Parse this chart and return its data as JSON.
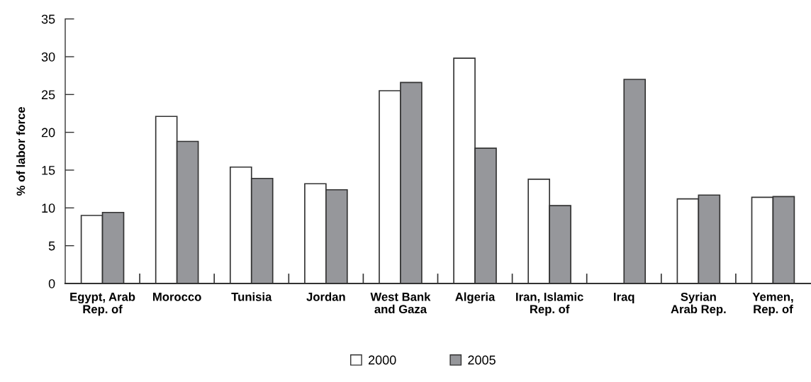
{
  "chart_data": {
    "type": "bar",
    "ylabel": "% of labor force",
    "categories": [
      "Egypt, Arab\nRep. of",
      "Morocco",
      "Tunisia",
      "Jordan",
      "West Bank\nand Gaza",
      "Algeria",
      "Iran, Islamic\nRep. of",
      "Iraq",
      "Syrian\nArab Rep.",
      "Yemen,\nRep. of"
    ],
    "series": [
      {
        "name": "2000",
        "color": "#ffffff",
        "values": [
          9.0,
          22.1,
          15.4,
          13.2,
          25.5,
          29.8,
          13.8,
          null,
          11.2,
          11.4
        ]
      },
      {
        "name": "2005",
        "color": "#96979b",
        "values": [
          9.4,
          18.8,
          13.9,
          12.4,
          26.6,
          17.9,
          10.3,
          27.0,
          11.7,
          11.5
        ]
      }
    ],
    "ylim": [
      0,
      35
    ],
    "yticks": [
      0,
      5,
      10,
      15,
      20,
      25,
      30,
      35
    ],
    "grid": false,
    "legend": "bottom"
  }
}
